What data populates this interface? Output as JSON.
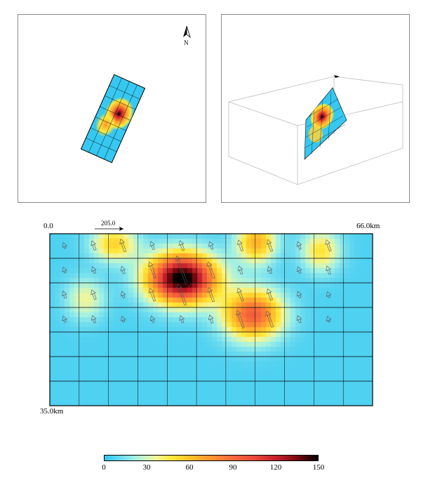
{
  "north_label": "N",
  "strike_value": "205.0",
  "axes": {
    "x_start": "0.0",
    "x_end": "66.0km",
    "y_end": "35.0km"
  },
  "colorbar": {
    "ticks": [
      "0",
      "30",
      "60",
      "90",
      "120",
      "150"
    ],
    "min": 0,
    "max": 150
  },
  "colors": {
    "low": "#2ec6f2",
    "mid": "#ffe83a",
    "high": "#c8202c",
    "peak": "#000000"
  },
  "fault": {
    "rows": 7,
    "cols": 11,
    "slip_peaks": [
      {
        "u": 0.41,
        "v": 0.26,
        "amp": 150,
        "su": 0.105,
        "sv": 0.14
      },
      {
        "u": 0.63,
        "v": 0.47,
        "amp": 90,
        "su": 0.09,
        "sv": 0.14
      },
      {
        "u": 0.64,
        "v": 0.05,
        "amp": 60,
        "su": 0.06,
        "sv": 0.12
      },
      {
        "u": 0.2,
        "v": 0.06,
        "amp": 48,
        "su": 0.07,
        "sv": 0.1
      },
      {
        "u": 0.84,
        "v": 0.1,
        "amp": 42,
        "su": 0.06,
        "sv": 0.12
      },
      {
        "u": 0.11,
        "v": 0.38,
        "amp": 30,
        "su": 0.06,
        "sv": 0.12
      }
    ]
  }
}
